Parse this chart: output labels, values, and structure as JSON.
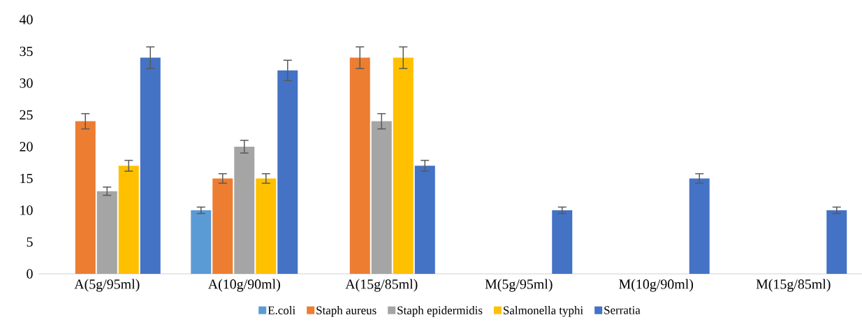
{
  "chart_data": {
    "type": "bar",
    "categories": [
      "A(5g/95ml)",
      "A(10g/90ml)",
      "A(15g/85ml)",
      "M(5g/95ml)",
      "M(10g/90ml)",
      "M(15g/85ml)"
    ],
    "series": [
      {
        "name": "E.coli",
        "color": "#5b9bd5",
        "values": [
          0,
          10,
          0,
          0,
          0,
          0
        ],
        "errors": [
          null,
          0.5,
          null,
          null,
          null,
          null
        ]
      },
      {
        "name": "Staph aureus",
        "color": "#ed7d31",
        "values": [
          24,
          15,
          34,
          0,
          0,
          0
        ],
        "errors": [
          1.2,
          0.75,
          1.7,
          null,
          null,
          null
        ]
      },
      {
        "name": "Staph epidermidis",
        "color": "#a5a5a5",
        "values": [
          13,
          20,
          24,
          0,
          0,
          0
        ],
        "errors": [
          0.65,
          1.0,
          1.2,
          null,
          null,
          null
        ]
      },
      {
        "name": "Salmonella typhi",
        "color": "#ffc000",
        "values": [
          17,
          15,
          34,
          0,
          0,
          0
        ],
        "errors": [
          0.85,
          0.75,
          1.7,
          null,
          null,
          null
        ]
      },
      {
        "name": "Serratia",
        "color": "#4472c4",
        "values": [
          34,
          32,
          17,
          10,
          15,
          10
        ],
        "errors": [
          1.7,
          1.6,
          0.85,
          0.5,
          0.75,
          0.5
        ]
      }
    ],
    "ylim": [
      0,
      40
    ],
    "yticks": [
      0,
      5,
      10,
      15,
      20,
      25,
      30,
      35,
      40
    ],
    "grid": false,
    "legend": "bottom"
  }
}
